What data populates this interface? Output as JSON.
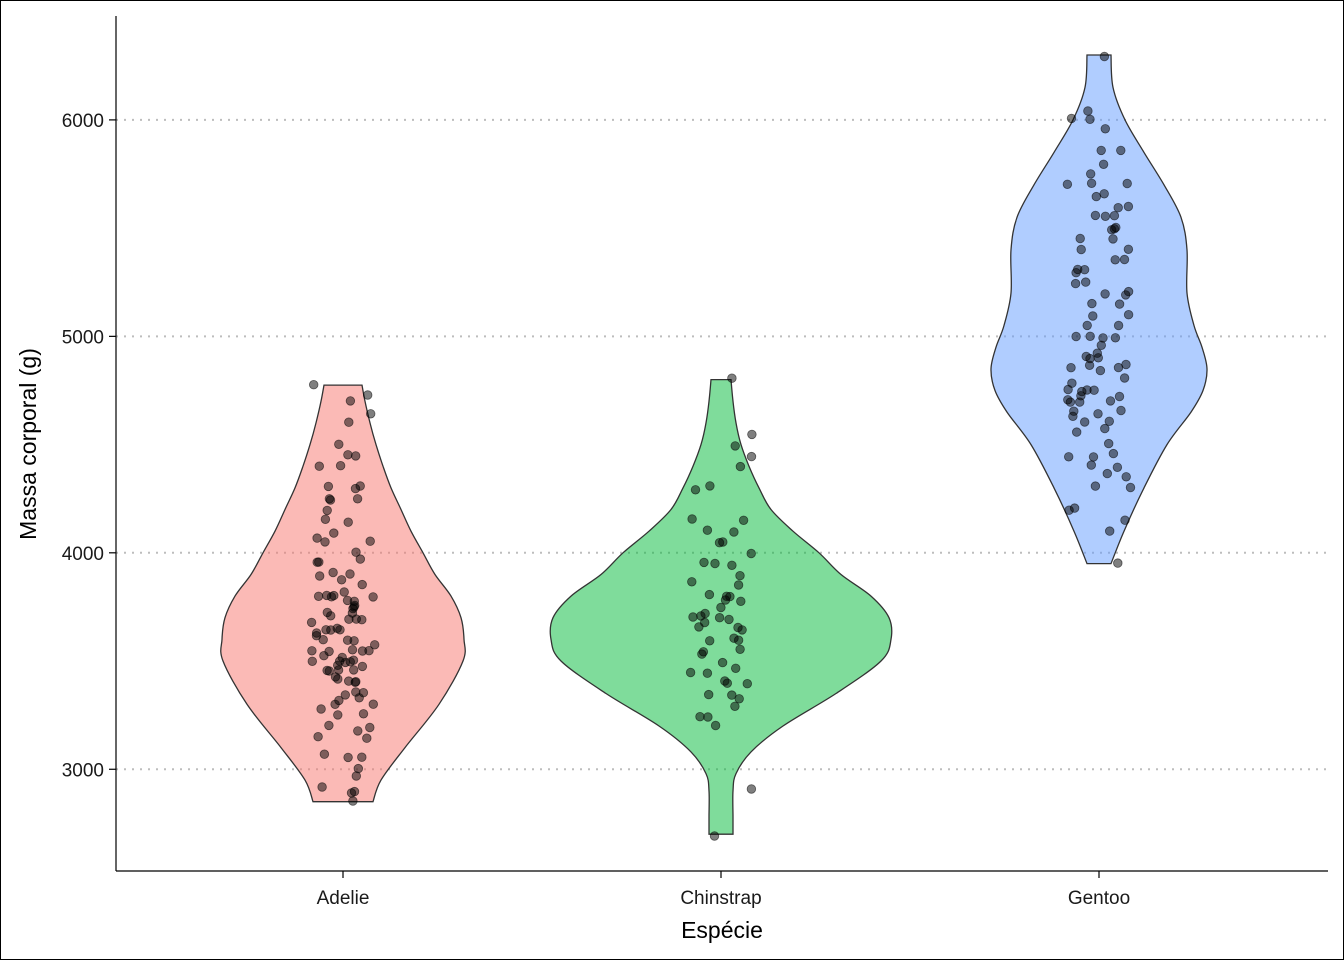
{
  "chart_data": {
    "type": "violin",
    "title": "",
    "xlabel": "Espécie",
    "ylabel": "Massa corporal (g)",
    "ylim": [
      2530,
      6480
    ],
    "yticks": [
      "3000",
      "4000",
      "5000",
      "6000"
    ],
    "ytick_values": [
      3000,
      4000,
      5000,
      6000
    ],
    "grid": "horizontal dotted at y ticks",
    "legend": "none",
    "categories": [
      "Adelie",
      "Chinstrap",
      "Gentoo"
    ],
    "series": [
      {
        "category": "Adelie",
        "fill": "#F8766D",
        "range": [
          2850,
          4775
        ],
        "density_width": [
          [
            2850,
            30
          ],
          [
            2950,
            38
          ],
          [
            3100,
            62
          ],
          [
            3300,
            96
          ],
          [
            3500,
            120
          ],
          [
            3600,
            121
          ],
          [
            3700,
            118
          ],
          [
            3800,
            108
          ],
          [
            3900,
            92
          ],
          [
            4000,
            80
          ],
          [
            4100,
            68
          ],
          [
            4200,
            58
          ],
          [
            4300,
            48
          ],
          [
            4400,
            40
          ],
          [
            4500,
            33
          ],
          [
            4600,
            27
          ],
          [
            4700,
            22
          ],
          [
            4775,
            19
          ]
        ],
        "points": [
          2850,
          2900,
          2900,
          2925,
          2975,
          3000,
          3050,
          3050,
          3075,
          3150,
          3150,
          3175,
          3200,
          3200,
          3250,
          3250,
          3275,
          3300,
          3300,
          3325,
          3325,
          3350,
          3350,
          3350,
          3400,
          3400,
          3400,
          3425,
          3425,
          3450,
          3450,
          3450,
          3450,
          3475,
          3475,
          3500,
          3500,
          3500,
          3500,
          3500,
          3525,
          3525,
          3550,
          3550,
          3550,
          3550,
          3550,
          3575,
          3600,
          3600,
          3600,
          3625,
          3625,
          3650,
          3650,
          3650,
          3650,
          3675,
          3700,
          3700,
          3700,
          3700,
          3725,
          3725,
          3750,
          3750,
          3750,
          3775,
          3775,
          3800,
          3800,
          3800,
          3800,
          3800,
          3825,
          3850,
          3875,
          3900,
          3900,
          3900,
          3950,
          3950,
          3975,
          4000,
          4050,
          4050,
          4075,
          4100,
          4150,
          4150,
          4200,
          4250,
          4250,
          4250,
          4300,
          4300,
          4300,
          4400,
          4400,
          4450,
          4450,
          4500,
          4600,
          4650,
          4700,
          4725,
          4775
        ]
      },
      {
        "category": "Chinstrap",
        "fill": "#00BA38",
        "range": [
          2700,
          4800
        ],
        "density_width": [
          [
            2700,
            12
          ],
          [
            2780,
            12
          ],
          [
            2900,
            12
          ],
          [
            2980,
            15
          ],
          [
            3080,
            30
          ],
          [
            3200,
            62
          ],
          [
            3350,
            115
          ],
          [
            3500,
            160
          ],
          [
            3600,
            170
          ],
          [
            3700,
            168
          ],
          [
            3800,
            150
          ],
          [
            3900,
            120
          ],
          [
            4000,
            98
          ],
          [
            4100,
            72
          ],
          [
            4200,
            50
          ],
          [
            4300,
            38
          ],
          [
            4400,
            28
          ],
          [
            4500,
            20
          ],
          [
            4600,
            15
          ],
          [
            4700,
            12
          ],
          [
            4800,
            10
          ]
        ],
        "points": [
          2700,
          2900,
          3200,
          3250,
          3250,
          3300,
          3325,
          3350,
          3350,
          3400,
          3400,
          3400,
          3450,
          3450,
          3475,
          3500,
          3525,
          3550,
          3550,
          3600,
          3600,
          3600,
          3650,
          3650,
          3650,
          3675,
          3700,
          3700,
          3700,
          3700,
          3725,
          3750,
          3775,
          3775,
          3800,
          3800,
          3800,
          3850,
          3875,
          3900,
          3950,
          3950,
          3950,
          4000,
          4050,
          4050,
          4100,
          4100,
          4150,
          4150,
          4300,
          4300,
          4400,
          4450,
          4500,
          4550,
          4800
        ]
      },
      {
        "category": "Gentoo",
        "fill": "#619CFF",
        "range": [
          3950,
          6300
        ],
        "density_width": [
          [
            3950,
            12
          ],
          [
            4100,
            25
          ],
          [
            4300,
            45
          ],
          [
            4500,
            68
          ],
          [
            4650,
            92
          ],
          [
            4750,
            104
          ],
          [
            4850,
            108
          ],
          [
            4950,
            103
          ],
          [
            5050,
            95
          ],
          [
            5200,
            88
          ],
          [
            5400,
            88
          ],
          [
            5550,
            82
          ],
          [
            5700,
            65
          ],
          [
            5850,
            45
          ],
          [
            6000,
            26
          ],
          [
            6150,
            14
          ],
          [
            6300,
            12
          ]
        ],
        "points": [
          3950,
          4100,
          4150,
          4200,
          4200,
          4300,
          4300,
          4350,
          4375,
          4400,
          4400,
          4450,
          4450,
          4450,
          4500,
          4550,
          4575,
          4600,
          4600,
          4625,
          4650,
          4650,
          4650,
          4700,
          4700,
          4700,
          4700,
          4725,
          4725,
          4750,
          4750,
          4750,
          4750,
          4775,
          4800,
          4850,
          4850,
          4850,
          4875,
          4875,
          4900,
          4900,
          4900,
          4925,
          4950,
          5000,
          5000,
          5000,
          5000,
          5050,
          5050,
          5100,
          5100,
          5150,
          5150,
          5200,
          5200,
          5200,
          5250,
          5250,
          5300,
          5300,
          5300,
          5350,
          5350,
          5400,
          5400,
          5450,
          5450,
          5500,
          5500,
          5500,
          5550,
          5550,
          5550,
          5600,
          5600,
          5650,
          5650,
          5700,
          5700,
          5700,
          5750,
          5800,
          5850,
          5850,
          5950,
          6000,
          6000,
          6050,
          6300
        ]
      }
    ]
  }
}
